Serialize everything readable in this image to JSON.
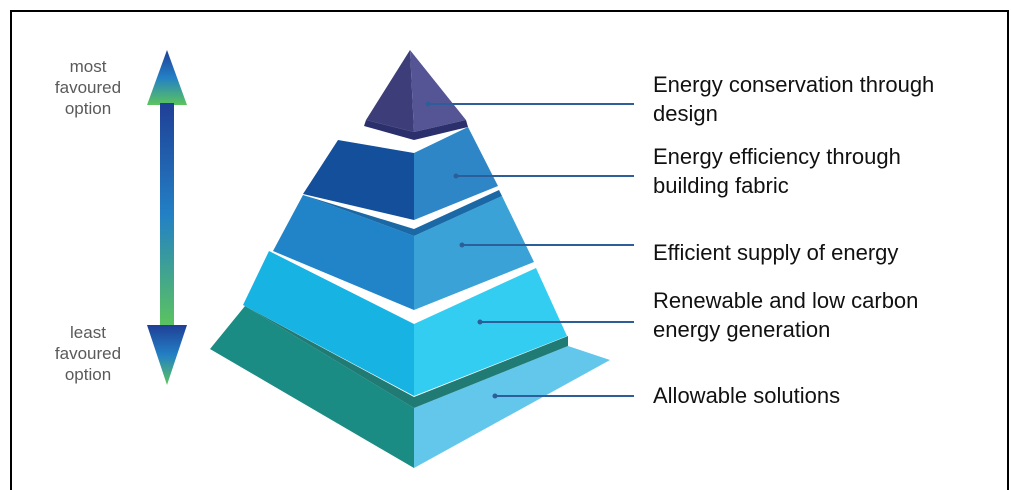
{
  "axis_labels": {
    "top": [
      "most",
      "favoured",
      "option"
    ],
    "bottom": [
      "least",
      "favoured",
      "option"
    ]
  },
  "tiers": [
    {
      "lines": [
        "Energy conservation through",
        "design"
      ],
      "left_color": "#3d3d7a",
      "right_color": "#555596"
    },
    {
      "lines": [
        "Energy efficiency through",
        "building fabric"
      ],
      "left_color": "#144f9c",
      "right_color": "#2f86c6"
    },
    {
      "lines": [
        "Efficient supply of energy"
      ],
      "left_color": "#2183c8",
      "right_color": "#3aa2d6"
    },
    {
      "lines": [
        "Renewable and low carbon",
        "energy generation"
      ],
      "left_color": "#16b3e3",
      "right_color": "#32cdf1"
    },
    {
      "lines": [
        "Allowable solutions"
      ],
      "left_color": "#1a8c84",
      "right_color": "#63c6eb"
    }
  ],
  "colors": {
    "leader_line": "#2c5f9a",
    "arrow_top": "#1f3f96",
    "arrow_mid": "#2380c5",
    "arrow_bottom": "#5cc45e"
  }
}
